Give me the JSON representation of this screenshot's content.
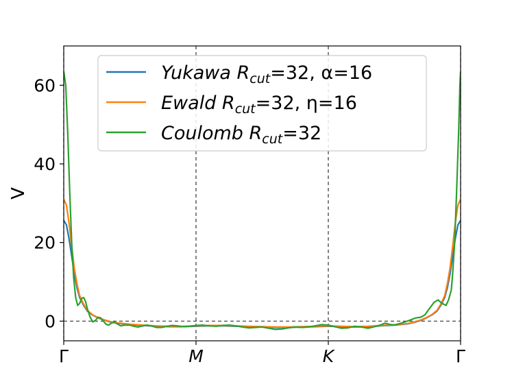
{
  "chart_data": {
    "type": "line",
    "ylabel": "V",
    "xlabel": "",
    "xlim": [
      0,
      3
    ],
    "ylim": [
      -5,
      70
    ],
    "yticks": [
      0,
      20,
      40,
      60
    ],
    "xticks": [
      {
        "pos": 0,
        "label": "Γ",
        "italic": false
      },
      {
        "pos": 1,
        "label": "M",
        "italic": true
      },
      {
        "pos": 2,
        "label": "K",
        "italic": true
      },
      {
        "pos": 3,
        "label": "Γ",
        "italic": false
      }
    ],
    "hline": 0,
    "vlines": [
      0,
      1,
      2,
      3
    ],
    "legend_position": "top-center",
    "series": [
      {
        "name": "Yukawa",
        "legend_param": "R_cut = 32, α = 16",
        "color": "#1f77b4",
        "points": [
          [
            0.0,
            25.6
          ],
          [
            0.02,
            24.5
          ],
          [
            0.04,
            21.0
          ],
          [
            0.06,
            16.5
          ],
          [
            0.08,
            12.0
          ],
          [
            0.1,
            8.5
          ],
          [
            0.12,
            6.0
          ],
          [
            0.15,
            4.0
          ],
          [
            0.18,
            2.5
          ],
          [
            0.22,
            1.5
          ],
          [
            0.26,
            0.8
          ],
          [
            0.3,
            0.3
          ],
          [
            0.35,
            -0.2
          ],
          [
            0.4,
            -0.5
          ],
          [
            0.5,
            -0.9
          ],
          [
            0.6,
            -1.1
          ],
          [
            0.7,
            -1.3
          ],
          [
            0.8,
            -1.4
          ],
          [
            0.9,
            -1.4
          ],
          [
            1.0,
            -1.3
          ],
          [
            1.1,
            -1.2
          ],
          [
            1.2,
            -1.2
          ],
          [
            1.3,
            -1.3
          ],
          [
            1.4,
            -1.4
          ],
          [
            1.5,
            -1.5
          ],
          [
            1.6,
            -1.6
          ],
          [
            1.7,
            -1.6
          ],
          [
            1.8,
            -1.5
          ],
          [
            1.9,
            -1.4
          ],
          [
            2.0,
            -1.3
          ],
          [
            2.1,
            -1.4
          ],
          [
            2.2,
            -1.5
          ],
          [
            2.3,
            -1.4
          ],
          [
            2.4,
            -1.2
          ],
          [
            2.5,
            -1.0
          ],
          [
            2.6,
            -0.7
          ],
          [
            2.65,
            -0.3
          ],
          [
            2.7,
            0.2
          ],
          [
            2.74,
            0.8
          ],
          [
            2.78,
            1.5
          ],
          [
            2.82,
            2.5
          ],
          [
            2.85,
            4.0
          ],
          [
            2.88,
            6.0
          ],
          [
            2.9,
            8.5
          ],
          [
            2.92,
            12.0
          ],
          [
            2.94,
            16.5
          ],
          [
            2.96,
            21.0
          ],
          [
            2.98,
            24.5
          ],
          [
            3.0,
            25.6
          ]
        ]
      },
      {
        "name": "Ewald",
        "legend_param": "R_cut = 32, η = 16",
        "color": "#ff7f0e",
        "points": [
          [
            0.0,
            31.0
          ],
          [
            0.02,
            29.5
          ],
          [
            0.04,
            25.0
          ],
          [
            0.06,
            19.0
          ],
          [
            0.08,
            13.5
          ],
          [
            0.1,
            9.5
          ],
          [
            0.12,
            6.5
          ],
          [
            0.15,
            4.3
          ],
          [
            0.18,
            2.7
          ],
          [
            0.22,
            1.6
          ],
          [
            0.26,
            0.9
          ],
          [
            0.3,
            0.4
          ],
          [
            0.35,
            -0.1
          ],
          [
            0.4,
            -0.4
          ],
          [
            0.5,
            -0.8
          ],
          [
            0.6,
            -1.0
          ],
          [
            0.7,
            -1.2
          ],
          [
            0.8,
            -1.3
          ],
          [
            0.9,
            -1.3
          ],
          [
            1.0,
            -1.2
          ],
          [
            1.1,
            -1.1
          ],
          [
            1.2,
            -1.1
          ],
          [
            1.3,
            -1.2
          ],
          [
            1.4,
            -1.3
          ],
          [
            1.5,
            -1.4
          ],
          [
            1.6,
            -1.5
          ],
          [
            1.7,
            -1.5
          ],
          [
            1.8,
            -1.4
          ],
          [
            1.9,
            -1.3
          ],
          [
            2.0,
            -1.2
          ],
          [
            2.1,
            -1.3
          ],
          [
            2.2,
            -1.4
          ],
          [
            2.3,
            -1.3
          ],
          [
            2.4,
            -1.1
          ],
          [
            2.5,
            -0.9
          ],
          [
            2.6,
            -0.6
          ],
          [
            2.65,
            -0.2
          ],
          [
            2.7,
            0.3
          ],
          [
            2.74,
            0.9
          ],
          [
            2.78,
            1.6
          ],
          [
            2.82,
            2.7
          ],
          [
            2.85,
            4.3
          ],
          [
            2.88,
            6.5
          ],
          [
            2.9,
            9.5
          ],
          [
            2.92,
            13.5
          ],
          [
            2.94,
            19.0
          ],
          [
            2.96,
            25.0
          ],
          [
            2.98,
            29.5
          ],
          [
            3.0,
            31.0
          ]
        ]
      },
      {
        "name": "Coulomb",
        "legend_param": "R_cut = 32",
        "color": "#2ca02c",
        "points": [
          [
            0.0,
            63.5
          ],
          [
            0.015,
            60.0
          ],
          [
            0.03,
            48.0
          ],
          [
            0.045,
            33.0
          ],
          [
            0.06,
            20.0
          ],
          [
            0.075,
            11.0
          ],
          [
            0.09,
            6.0
          ],
          [
            0.105,
            4.0
          ],
          [
            0.12,
            4.5
          ],
          [
            0.135,
            5.8
          ],
          [
            0.15,
            6.0
          ],
          [
            0.165,
            5.0
          ],
          [
            0.18,
            3.0
          ],
          [
            0.2,
            1.0
          ],
          [
            0.22,
            -0.2
          ],
          [
            0.24,
            0.2
          ],
          [
            0.26,
            1.0
          ],
          [
            0.28,
            0.8
          ],
          [
            0.3,
            0.0
          ],
          [
            0.32,
            -0.8
          ],
          [
            0.34,
            -1.0
          ],
          [
            0.36,
            -0.5
          ],
          [
            0.38,
            -0.3
          ],
          [
            0.4,
            -0.6
          ],
          [
            0.43,
            -1.2
          ],
          [
            0.46,
            -1.0
          ],
          [
            0.5,
            -1.0
          ],
          [
            0.53,
            -1.3
          ],
          [
            0.56,
            -1.5
          ],
          [
            0.6,
            -1.2
          ],
          [
            0.63,
            -1.0
          ],
          [
            0.66,
            -1.2
          ],
          [
            0.7,
            -1.6
          ],
          [
            0.74,
            -1.6
          ],
          [
            0.78,
            -1.3
          ],
          [
            0.82,
            -1.1
          ],
          [
            0.86,
            -1.2
          ],
          [
            0.9,
            -1.4
          ],
          [
            0.95,
            -1.3
          ],
          [
            1.0,
            -1.1
          ],
          [
            1.05,
            -1.0
          ],
          [
            1.1,
            -1.2
          ],
          [
            1.15,
            -1.3
          ],
          [
            1.2,
            -1.1
          ],
          [
            1.25,
            -1.0
          ],
          [
            1.3,
            -1.2
          ],
          [
            1.35,
            -1.5
          ],
          [
            1.4,
            -1.7
          ],
          [
            1.45,
            -1.6
          ],
          [
            1.5,
            -1.5
          ],
          [
            1.55,
            -1.8
          ],
          [
            1.6,
            -2.1
          ],
          [
            1.65,
            -2.0
          ],
          [
            1.7,
            -1.7
          ],
          [
            1.75,
            -1.5
          ],
          [
            1.8,
            -1.6
          ],
          [
            1.85,
            -1.5
          ],
          [
            1.9,
            -1.2
          ],
          [
            1.95,
            -0.9
          ],
          [
            2.0,
            -1.0
          ],
          [
            2.05,
            -1.4
          ],
          [
            2.1,
            -1.8
          ],
          [
            2.15,
            -1.7
          ],
          [
            2.2,
            -1.3
          ],
          [
            2.25,
            -1.5
          ],
          [
            2.3,
            -1.8
          ],
          [
            2.35,
            -1.4
          ],
          [
            2.4,
            -0.9
          ],
          [
            2.43,
            -0.5
          ],
          [
            2.46,
            -0.8
          ],
          [
            2.5,
            -1.0
          ],
          [
            2.54,
            -0.6
          ],
          [
            2.58,
            -0.2
          ],
          [
            2.62,
            0.3
          ],
          [
            2.66,
            0.8
          ],
          [
            2.7,
            1.0
          ],
          [
            2.73,
            1.6
          ],
          [
            2.76,
            3.0
          ],
          [
            2.8,
            4.8
          ],
          [
            2.83,
            5.4
          ],
          [
            2.86,
            4.5
          ],
          [
            2.89,
            4.0
          ],
          [
            2.91,
            5.5
          ],
          [
            2.93,
            8.0
          ],
          [
            2.94,
            12.0
          ],
          [
            2.955,
            20.0
          ],
          [
            2.97,
            33.0
          ],
          [
            2.985,
            48.0
          ],
          [
            2.995,
            60.0
          ],
          [
            3.0,
            63.5
          ]
        ]
      }
    ]
  }
}
